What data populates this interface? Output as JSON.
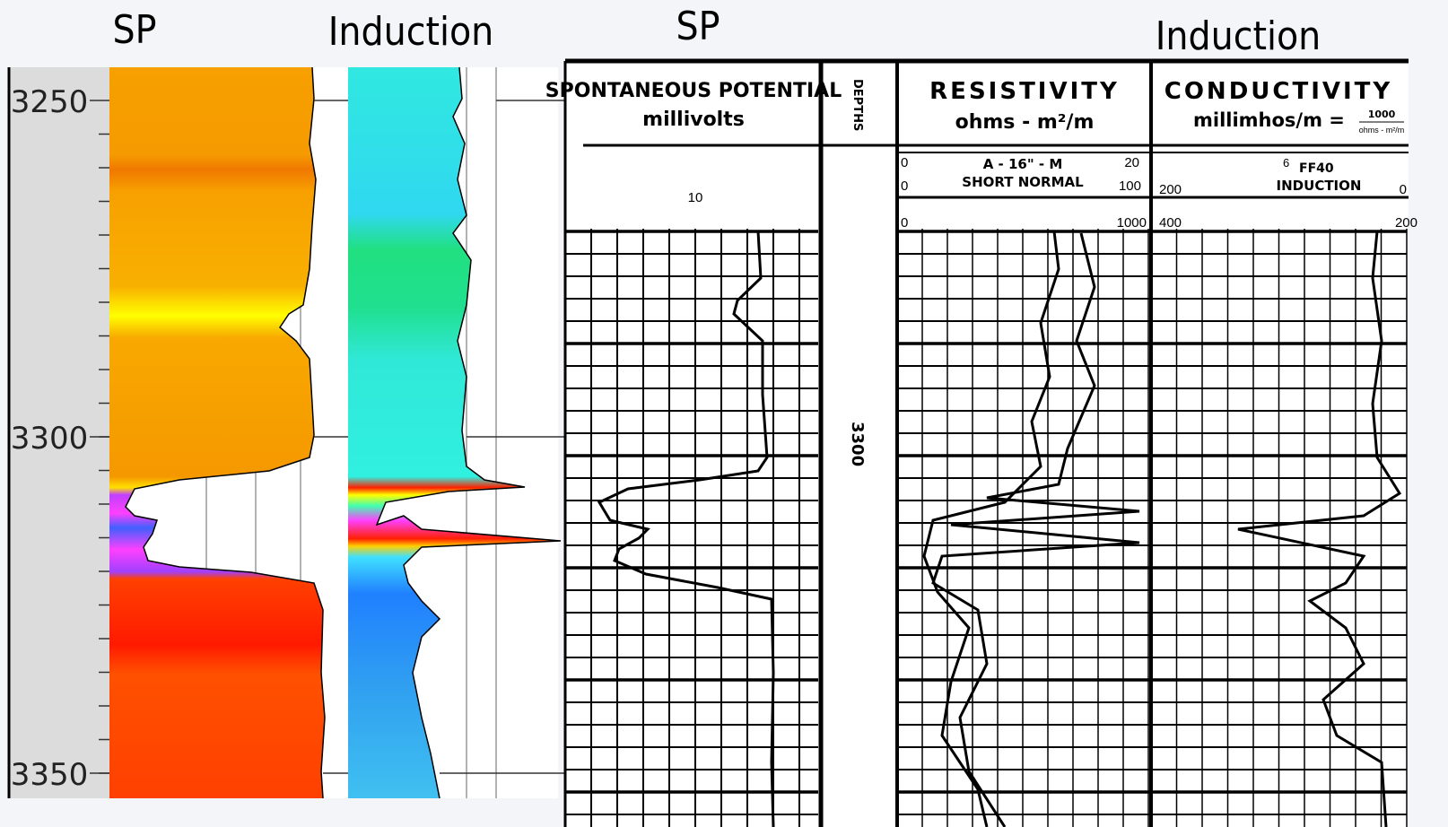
{
  "labels": {
    "sp_left": "SP",
    "induction_left": "Induction",
    "sp_right": "SP",
    "induction_right": "Induction"
  },
  "depth_axis": {
    "ticks": [
      "3250",
      "3300",
      "3350"
    ]
  },
  "log_header": {
    "sp": {
      "title": "SPONTANEOUS POTENTIAL",
      "unit": "millivolts",
      "scale": "10"
    },
    "depths": "DEPTHS",
    "resistivity": {
      "title": "RESISTIVITY",
      "unit": "ohms - m²/m",
      "curve1": {
        "name": "A - 16\" - M",
        "left": "0",
        "right": "20"
      },
      "curve2": {
        "name": "SHORT NORMAL",
        "left": "0",
        "right": "100"
      },
      "curve3": {
        "left": "0",
        "right": "1000"
      }
    },
    "conductivity": {
      "title": "CONDUCTIVITY",
      "unit": "millimhos/m =",
      "formula_num": "1000",
      "formula_den": "ohms - m²/m",
      "curve_top": "6",
      "curve_name": "FF40",
      "induction": "INDUCTION",
      "left1": "200",
      "right1": "0",
      "left2": "400",
      "right2": "200"
    }
  },
  "track_depth": "3300"
}
